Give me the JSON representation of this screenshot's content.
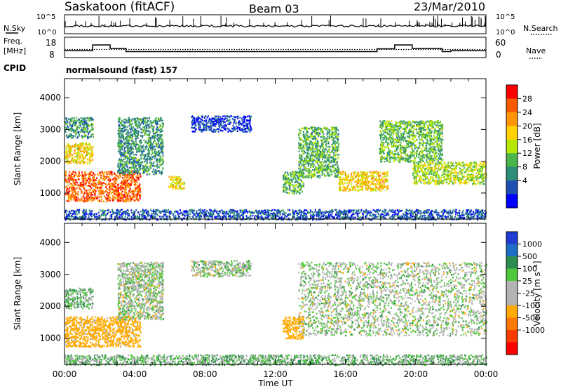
{
  "header": {
    "station": "Saskatoon (fitACF)",
    "beam": "Beam 03",
    "date": "23/Mar/2010"
  },
  "noise_panel": {
    "left_label": "N.Sky",
    "right_label": "N.Search",
    "left_ticks": [
      "10^5",
      "10^0"
    ],
    "right_ticks": [
      "10^5",
      "10^0"
    ]
  },
  "freq_panel": {
    "left_label_line1": "Freq.",
    "left_label_line2": "[MHz]",
    "right_label": "Nave",
    "left_ticks": [
      "18",
      "8"
    ],
    "right_ticks": [
      "60",
      "0"
    ]
  },
  "cpid": {
    "label": "CPID",
    "program": "normalsound (fast) 157"
  },
  "axes": {
    "ylabel": "Slant Range [km]",
    "xlabel": "Time UT",
    "y_ticks": [
      "4000",
      "3000",
      "2000",
      "1000"
    ],
    "x_ticks": [
      "00:00",
      "04:00",
      "08:00",
      "12:00",
      "16:00",
      "20:00",
      "00:00"
    ]
  },
  "colorbars": {
    "power": {
      "label": "Power [dB]",
      "ticks": [
        "28",
        "24",
        "20",
        "16",
        "12",
        "8",
        "4"
      ],
      "colors": [
        "#ff0000",
        "#ff5a00",
        "#ff9600",
        "#ffd200",
        "#b4e600",
        "#4bb44b",
        "#2d8c78",
        "#1e50b4",
        "#0000ff"
      ]
    },
    "velocity": {
      "label": "Velocity [m s⁻¹]",
      "ticks": [
        "1000",
        "500",
        "100",
        "25",
        "-25",
        "-100",
        "-500",
        "-1000"
      ],
      "colors": [
        "#1e3cd2",
        "#1e6ec8",
        "#2d8c50",
        "#50c83c",
        "#b4b4b4",
        "#b4b4b4",
        "#ffaa00",
        "#ff7800",
        "#ff3c00",
        "#ff0000"
      ]
    }
  },
  "chart_data": [
    {
      "type": "heatmap",
      "title": "Power",
      "xlabel": "Time UT",
      "ylabel": "Slant Range [km]",
      "xlim": [
        0,
        24
      ],
      "ylim": [
        180,
        4600
      ],
      "colorbar_label": "Power [dB]",
      "colorbar_ticks": [
        4,
        8,
        12,
        16,
        20,
        24,
        28
      ],
      "scatter_regions": [
        {
          "t": [
            0.0,
            4.3
          ],
          "r": [
            750,
            1700
          ],
          "db": 28
        },
        {
          "t": [
            0.0,
            1.6
          ],
          "r": [
            1950,
            2600
          ],
          "db": 21
        },
        {
          "t": [
            0.0,
            1.6
          ],
          "r": [
            2750,
            3400
          ],
          "db": 12
        },
        {
          "t": [
            3.0,
            5.6
          ],
          "r": [
            1600,
            3400
          ],
          "db": 12
        },
        {
          "t": [
            5.9,
            6.8
          ],
          "r": [
            1150,
            1550
          ],
          "db": 20
        },
        {
          "t": [
            7.2,
            10.6
          ],
          "r": [
            2950,
            3450
          ],
          "db": 6
        },
        {
          "t": [
            12.4,
            13.6
          ],
          "r": [
            1000,
            1700
          ],
          "db": 14
        },
        {
          "t": [
            13.3,
            15.6
          ],
          "r": [
            1500,
            3100
          ],
          "db": 14
        },
        {
          "t": [
            15.6,
            18.4
          ],
          "r": [
            1100,
            1700
          ],
          "db": 22
        },
        {
          "t": [
            17.9,
            21.5
          ],
          "r": [
            2000,
            3300
          ],
          "db": 15
        },
        {
          "t": [
            19.8,
            24.0
          ],
          "r": [
            1300,
            2000
          ],
          "db": 18
        },
        {
          "t": [
            0.0,
            24.0
          ],
          "r": [
            180,
            500
          ],
          "db": 8
        }
      ]
    },
    {
      "type": "heatmap",
      "title": "Velocity",
      "xlabel": "Time UT",
      "ylabel": "Slant Range [km]",
      "xlim": [
        0,
        24
      ],
      "ylim": [
        180,
        4600
      ],
      "colorbar_label": "Velocity [m s⁻¹]",
      "colorbar_ticks": [
        1000,
        500,
        100,
        25,
        -25,
        -100,
        -500,
        -1000
      ],
      "scatter_regions": [
        {
          "t": [
            0.0,
            4.3
          ],
          "r": [
            750,
            1700
          ],
          "v": -200
        },
        {
          "t": [
            0.0,
            1.6
          ],
          "r": [
            1950,
            2600
          ],
          "v": 50
        },
        {
          "t": [
            3.0,
            5.6
          ],
          "r": [
            1600,
            3400
          ],
          "v": 0
        },
        {
          "t": [
            7.2,
            10.6
          ],
          "r": [
            2950,
            3450
          ],
          "v": 0
        },
        {
          "t": [
            12.4,
            13.6
          ],
          "r": [
            1000,
            1700
          ],
          "v": -300
        },
        {
          "t": [
            13.3,
            24.0
          ],
          "r": [
            1100,
            3400
          ],
          "v": 0
        },
        {
          "t": [
            0.0,
            24.0
          ],
          "r": [
            180,
            500
          ],
          "v": 50
        }
      ]
    }
  ]
}
